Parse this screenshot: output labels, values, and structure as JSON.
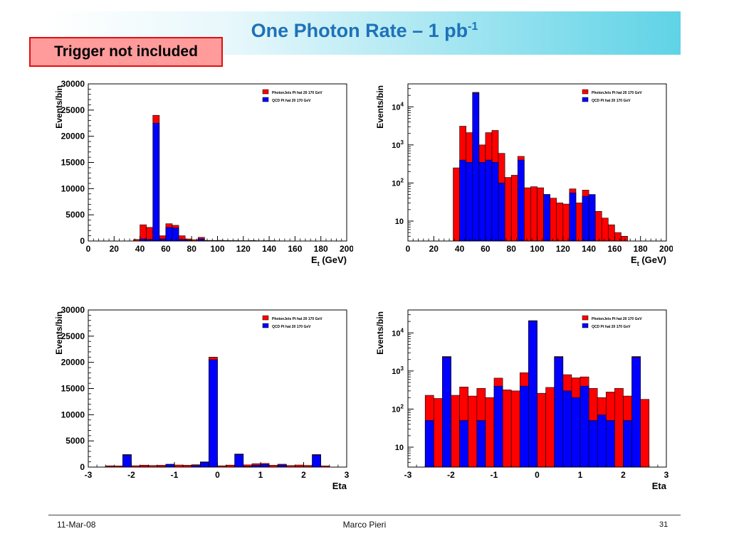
{
  "slide": {
    "title_main": "One Photon Rate – 1 pb",
    "title_sup": "-1",
    "badge": "Trigger not included",
    "footer_date": "11-Mar-08",
    "footer_author": "Marco Pieri",
    "page_number": "31"
  },
  "colors": {
    "red": "#ff0000",
    "blue": "#0000ff"
  },
  "chart_data": [
    {
      "id": "et-linear",
      "type": "bar",
      "scale": "linear",
      "xlabel": "E",
      "xlabel_sub": "t",
      "xlabel_unit": " (GeV)",
      "ylabel": "Events/bin",
      "xlim": [
        0,
        200
      ],
      "ylim": [
        0,
        30000
      ],
      "xticks": [
        0,
        20,
        40,
        60,
        80,
        100,
        120,
        140,
        160,
        180,
        200
      ],
      "yticks": [
        0,
        5000,
        10000,
        15000,
        20000,
        25000,
        30000
      ],
      "legend_position": "top-right",
      "legend": [
        "PhotonJets Pt hat 20 170 GeV",
        "QCD Pt hat 20 170 GeV"
      ],
      "bin_edges": [
        35,
        40,
        45,
        50,
        55,
        60,
        65,
        70,
        75,
        80,
        85,
        90,
        95,
        100,
        105,
        110,
        115,
        120,
        125,
        130,
        135,
        140,
        145,
        150,
        155,
        160,
        165,
        170,
        175
      ],
      "series": [
        {
          "name": "PhotonJets Pt hat 20 170 GeV",
          "values": [
            300,
            3100,
            2600,
            24000,
            1000,
            3300,
            3000,
            1000,
            400,
            250,
            700,
            120,
            110,
            130,
            90,
            80,
            75,
            70,
            85,
            60,
            70,
            60,
            40,
            30,
            20,
            15,
            10,
            5
          ]
        },
        {
          "name": "QCD Pt hat 20 170 GeV",
          "values": [
            0,
            400,
            300,
            22500,
            400,
            2600,
            2500,
            300,
            150,
            0,
            400,
            0,
            0,
            0,
            50,
            0,
            0,
            0,
            60,
            0,
            40,
            50,
            0,
            0,
            0,
            0,
            0,
            0
          ]
        }
      ]
    },
    {
      "id": "et-log",
      "type": "bar",
      "scale": "log",
      "xlabel": "E",
      "xlabel_sub": "t",
      "xlabel_unit": " (GeV)",
      "ylabel": "Events/bin",
      "xlim": [
        0,
        200
      ],
      "ylim": [
        3,
        40000
      ],
      "xticks": [
        0,
        20,
        40,
        60,
        80,
        100,
        120,
        140,
        160,
        180,
        200
      ],
      "yticks": [
        {
          "v": 10,
          "base": "10",
          "exp": ""
        },
        {
          "v": 100,
          "base": "10",
          "exp": "2"
        },
        {
          "v": 1000,
          "base": "10",
          "exp": "3"
        },
        {
          "v": 10000,
          "base": "10",
          "exp": "4"
        }
      ],
      "legend_position": "top-right",
      "legend": [
        "PhotonJets Pt hat 20 170 GeV",
        "QCD Pt hat 20 170 GeV"
      ],
      "bin_edges": [
        35,
        40,
        45,
        50,
        55,
        60,
        65,
        70,
        75,
        80,
        85,
        90,
        95,
        100,
        105,
        110,
        115,
        120,
        125,
        130,
        135,
        140,
        145,
        150,
        155,
        160,
        165,
        170,
        175
      ],
      "series": [
        {
          "name": "PhotonJets Pt hat 20 170 GeV",
          "values": [
            250,
            3100,
            2100,
            24000,
            1000,
            2100,
            2400,
            600,
            140,
            160,
            500,
            75,
            80,
            75,
            50,
            40,
            30,
            28,
            70,
            30,
            65,
            35,
            18,
            12,
            8,
            5,
            4,
            3
          ]
        },
        {
          "name": "QCD Pt hat 20 170 GeV",
          "values": [
            0,
            400,
            350,
            23000,
            350,
            400,
            350,
            100,
            0,
            0,
            400,
            0,
            0,
            0,
            50,
            0,
            0,
            0,
            55,
            0,
            45,
            50,
            0,
            0,
            0,
            0,
            0,
            0
          ]
        }
      ]
    },
    {
      "id": "eta-linear",
      "type": "bar",
      "scale": "linear",
      "xlabel": "Eta",
      "ylabel": "Events/bin",
      "xlim": [
        -3,
        3
      ],
      "ylim": [
        0,
        30000
      ],
      "xticks": [
        -3,
        -2,
        -1,
        0,
        1,
        2,
        3
      ],
      "yticks": [
        0,
        5000,
        10000,
        15000,
        20000,
        25000,
        30000
      ],
      "legend_position": "top-right",
      "legend": [
        "PhotonJets Pt hat 20 170 GeV",
        "QCD Pt hat 20 170 GeV"
      ],
      "bin_edges": [
        -2.6,
        -2.4,
        -2.2,
        -2.0,
        -1.8,
        -1.6,
        -1.4,
        -1.2,
        -1.0,
        -0.8,
        -0.6,
        -0.4,
        -0.2,
        0.0,
        0.2,
        0.4,
        0.6,
        0.8,
        1.0,
        1.2,
        1.4,
        1.6,
        1.8,
        2.0,
        2.2,
        2.4,
        2.6
      ],
      "series": [
        {
          "name": "PhotonJets Pt hat 20 170 GeV",
          "values": [
            250,
            230,
            2400,
            260,
            370,
            300,
            350,
            550,
            400,
            360,
            450,
            1000,
            21000,
            250,
            380,
            2500,
            420,
            650,
            700,
            350,
            550,
            300,
            400,
            320,
            2400,
            230
          ]
        },
        {
          "name": "QCD Pt hat 20 170 GeV",
          "values": [
            50,
            0,
            2300,
            0,
            50,
            0,
            60,
            500,
            0,
            0,
            300,
            900,
            20500,
            0,
            0,
            2400,
            100,
            350,
            500,
            0,
            400,
            0,
            50,
            50,
            2300,
            0
          ]
        }
      ]
    },
    {
      "id": "eta-log",
      "type": "bar",
      "scale": "log",
      "xlabel": "Eta",
      "ylabel": "Events/bin",
      "xlim": [
        -3,
        3
      ],
      "ylim": [
        3,
        40000
      ],
      "xticks": [
        -3,
        -2,
        -1,
        0,
        1,
        2,
        3
      ],
      "yticks": [
        {
          "v": 10,
          "base": "10",
          "exp": ""
        },
        {
          "v": 100,
          "base": "10",
          "exp": "2"
        },
        {
          "v": 1000,
          "base": "10",
          "exp": "3"
        },
        {
          "v": 10000,
          "base": "10",
          "exp": "4"
        }
      ],
      "legend_position": "top-right",
      "legend": [
        "PhotonJets Pt hat 20 170 GeV",
        "QCD Pt hat 20 170 GeV"
      ],
      "bin_edges": [
        -2.6,
        -2.4,
        -2.2,
        -2.0,
        -1.8,
        -1.6,
        -1.4,
        -1.2,
        -1.0,
        -0.8,
        -0.6,
        -0.4,
        -0.2,
        0.0,
        0.2,
        0.4,
        0.6,
        0.8,
        1.0,
        1.2,
        1.4,
        1.6,
        1.8,
        2.0,
        2.2,
        2.4,
        2.6
      ],
      "series": [
        {
          "name": "PhotonJets Pt hat 20 170 GeV",
          "values": [
            230,
            190,
            2400,
            230,
            380,
            220,
            350,
            200,
            650,
            320,
            300,
            900,
            21000,
            260,
            370,
            2400,
            800,
            660,
            700,
            350,
            200,
            280,
            350,
            220,
            2400,
            180
          ]
        },
        {
          "name": "QCD Pt hat 20 170 GeV",
          "values": [
            50,
            0,
            2300,
            0,
            50,
            0,
            50,
            0,
            400,
            0,
            0,
            400,
            20500,
            0,
            0,
            2300,
            300,
            200,
            400,
            50,
            70,
            50,
            0,
            50,
            2300,
            0
          ]
        }
      ]
    }
  ]
}
